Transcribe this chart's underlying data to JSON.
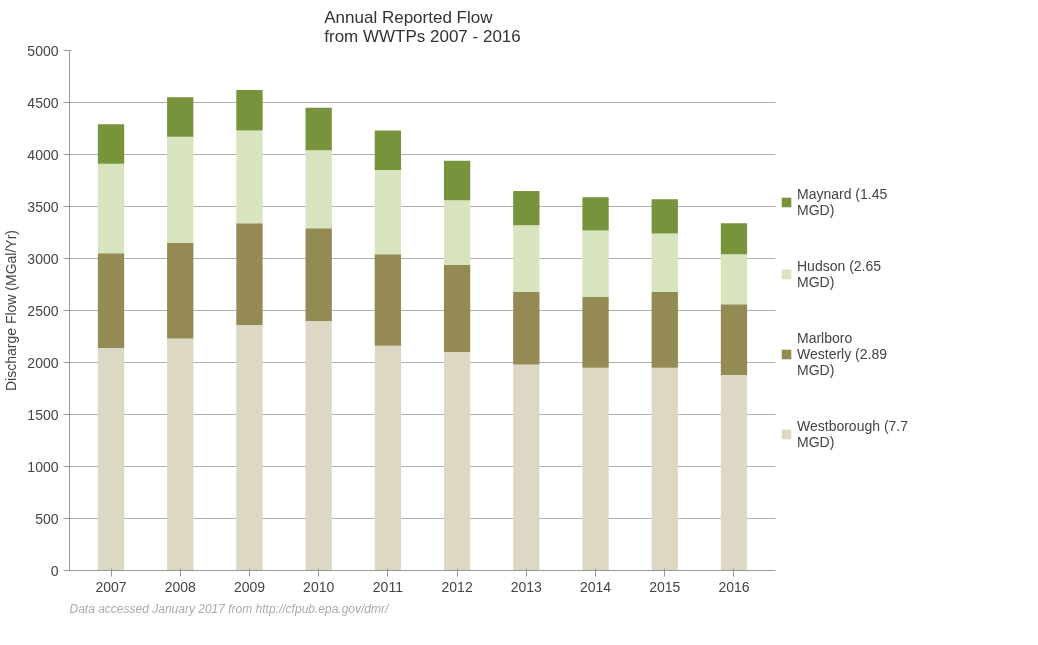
{
  "chart_data": {
    "type": "bar",
    "stacked": true,
    "title": "Annual Reported Flow\nfrom WWTPs 2007 - 2016",
    "ylabel": "Discharge Flow (MGal/Yr)",
    "categories": [
      "2007",
      "2008",
      "2009",
      "2010",
      "2011",
      "2012",
      "2013",
      "2014",
      "2015",
      "2016"
    ],
    "series": [
      {
        "name": "Westborough (7.7 MGD)",
        "color": "#ddd8c4",
        "values": [
          2140,
          2230,
          2360,
          2400,
          2160,
          2100,
          1980,
          1950,
          1950,
          1880
        ]
      },
      {
        "name": "Marlboro Westerly (2.89 MGD)",
        "color": "#948a54",
        "values": [
          910,
          920,
          980,
          890,
          880,
          840,
          700,
          680,
          730,
          680
        ]
      },
      {
        "name": "Hudson (2.65 MGD)",
        "color": "#d7e4bd",
        "values": [
          860,
          1020,
          890,
          750,
          810,
          620,
          640,
          640,
          560,
          480
        ]
      },
      {
        "name": "Maynard (1.45 MGD)",
        "color": "#77933c",
        "values": [
          380,
          380,
          390,
          410,
          380,
          380,
          330,
          320,
          330,
          300
        ]
      }
    ],
    "ylim": [
      0,
      5000
    ],
    "yticks": [
      0,
      500,
      1000,
      1500,
      2000,
      2500,
      3000,
      3500,
      4000,
      4500,
      5000
    ],
    "grid": "y",
    "legend": "right",
    "annotations": [
      "Data accessed January 2017 from http://cfpub.epa.gov/dmr/"
    ]
  }
}
